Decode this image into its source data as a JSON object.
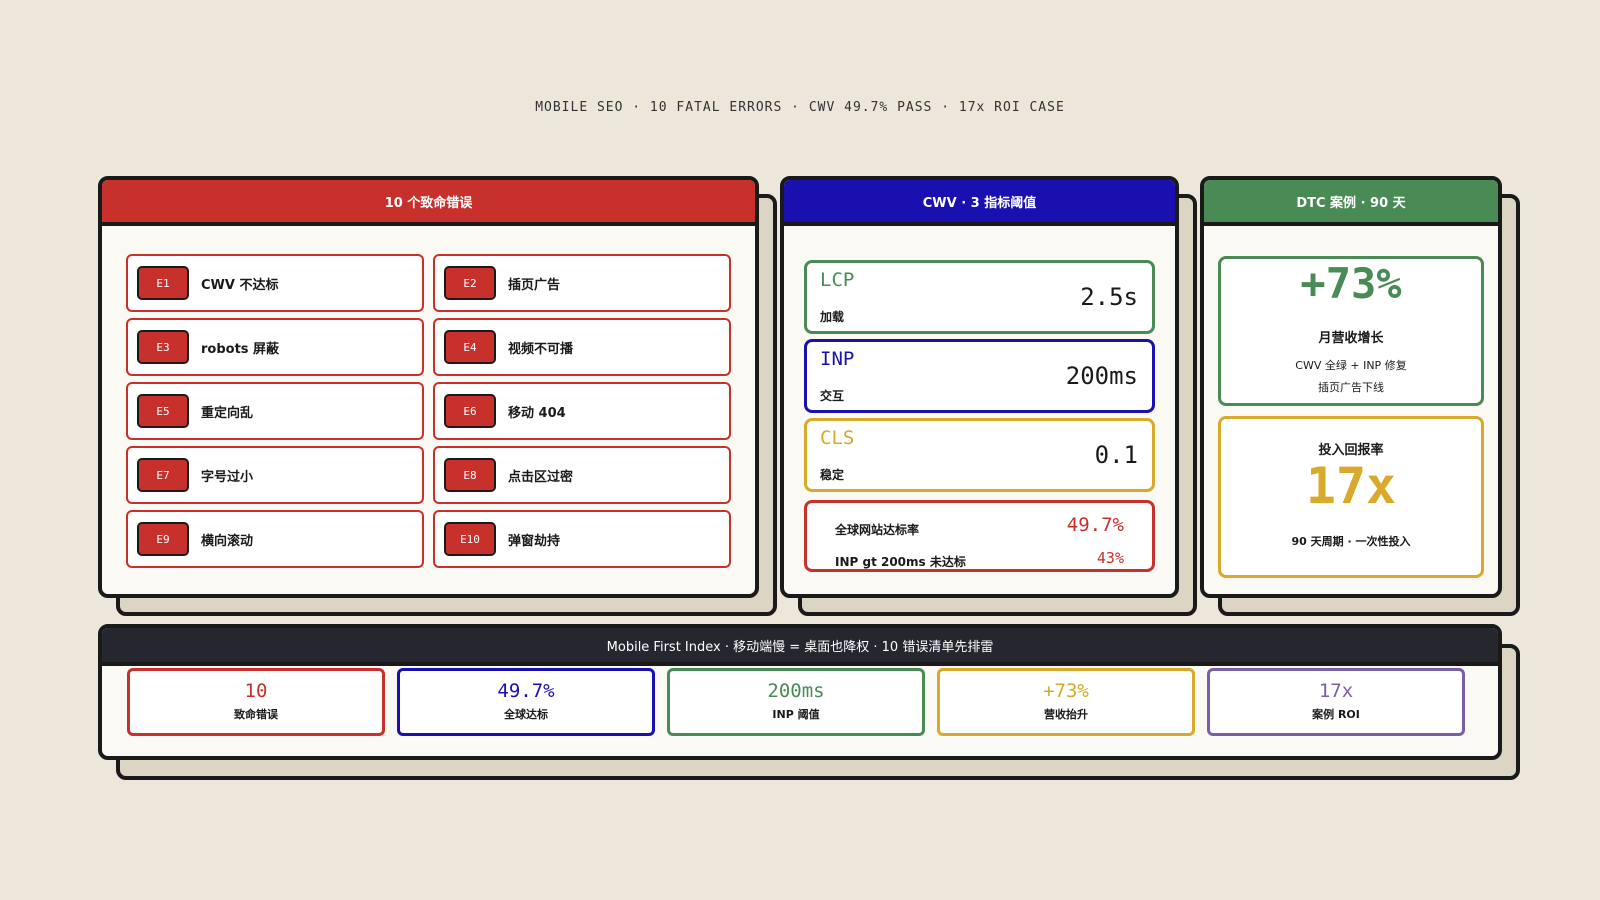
{
  "header": {
    "subtitle": "MOBILE SEO · 10 FATAL ERRORS · CWV 49.7% PASS · 17x ROI CASE"
  },
  "errors": {
    "title": "10 个致命错误",
    "items": [
      {
        "code": "E1",
        "label": "CWV 不达标"
      },
      {
        "code": "E2",
        "label": "插页广告"
      },
      {
        "code": "E3",
        "label": "robots 屏蔽"
      },
      {
        "code": "E4",
        "label": "视频不可播"
      },
      {
        "code": "E5",
        "label": "重定向乱"
      },
      {
        "code": "E6",
        "label": "移动 404"
      },
      {
        "code": "E7",
        "label": "字号过小"
      },
      {
        "code": "E8",
        "label": "点击区过密"
      },
      {
        "code": "E9",
        "label": "横向滚动"
      },
      {
        "code": "E10",
        "label": "弹窗劫持"
      }
    ]
  },
  "cwv": {
    "title": "CWV · 3 指标阈值",
    "metrics": [
      {
        "name": "LCP",
        "desc": "加载",
        "value": "2.5s"
      },
      {
        "name": "INP",
        "desc": "交互",
        "value": "200ms"
      },
      {
        "name": "CLS",
        "desc": "稳定",
        "value": "0.1"
      }
    ],
    "stats": [
      {
        "label": "全球网站达标率",
        "value": "49.7%"
      },
      {
        "label": "INP gt 200ms 未达标",
        "value": "43%"
      }
    ]
  },
  "case": {
    "title": "DTC 案例 · 90 天",
    "growth": {
      "value": "+73%",
      "label": "月营收增长",
      "notes": [
        "CWV 全绿 + INP 修复",
        "插页广告下线"
      ]
    },
    "roi": {
      "label": "投入回报率",
      "value": "17x",
      "note": "90 天周期 · 一次性投入"
    }
  },
  "footer": {
    "title": "Mobile First Index · 移动端慢 = 桌面也降权 · 10 错误清单先排雷",
    "kpis": [
      {
        "value": "10",
        "label": "致命错误"
      },
      {
        "value": "49.7%",
        "label": "全球达标"
      },
      {
        "value": "200ms",
        "label": "INP 阈值"
      },
      {
        "value": "+73%",
        "label": "营收抬升"
      },
      {
        "value": "17x",
        "label": "案例 ROI"
      }
    ]
  }
}
